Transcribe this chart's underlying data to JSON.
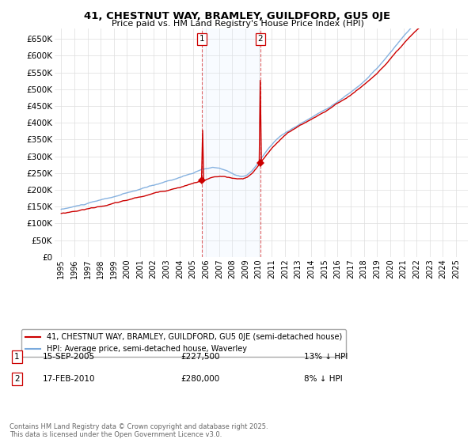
{
  "title": "41, CHESTNUT WAY, BRAMLEY, GUILDFORD, GU5 0JE",
  "subtitle": "Price paid vs. HM Land Registry's House Price Index (HPI)",
  "ylim": [
    0,
    680000
  ],
  "yticks": [
    0,
    50000,
    100000,
    150000,
    200000,
    250000,
    300000,
    350000,
    400000,
    450000,
    500000,
    550000,
    600000,
    650000
  ],
  "ytick_labels": [
    "£0",
    "£50K",
    "£100K",
    "£150K",
    "£200K",
    "£250K",
    "£300K",
    "£350K",
    "£400K",
    "£450K",
    "£500K",
    "£550K",
    "£600K",
    "£650K"
  ],
  "sale1_date": "15-SEP-2005",
  "sale1_price": 227500,
  "sale1_hpi_diff": "13% ↓ HPI",
  "sale2_date": "17-FEB-2010",
  "sale2_price": 280000,
  "sale2_hpi_diff": "8% ↓ HPI",
  "legend_property": "41, CHESTNUT WAY, BRAMLEY, GUILDFORD, GU5 0JE (semi-detached house)",
  "legend_hpi": "HPI: Average price, semi-detached house, Waverley",
  "footer": "Contains HM Land Registry data © Crown copyright and database right 2025.\nThis data is licensed under the Open Government Licence v3.0.",
  "property_color": "#cc0000",
  "hpi_color": "#7aaadd",
  "shade_color": "#ddeeff",
  "bg_color": "#ffffff",
  "grid_color": "#dddddd"
}
